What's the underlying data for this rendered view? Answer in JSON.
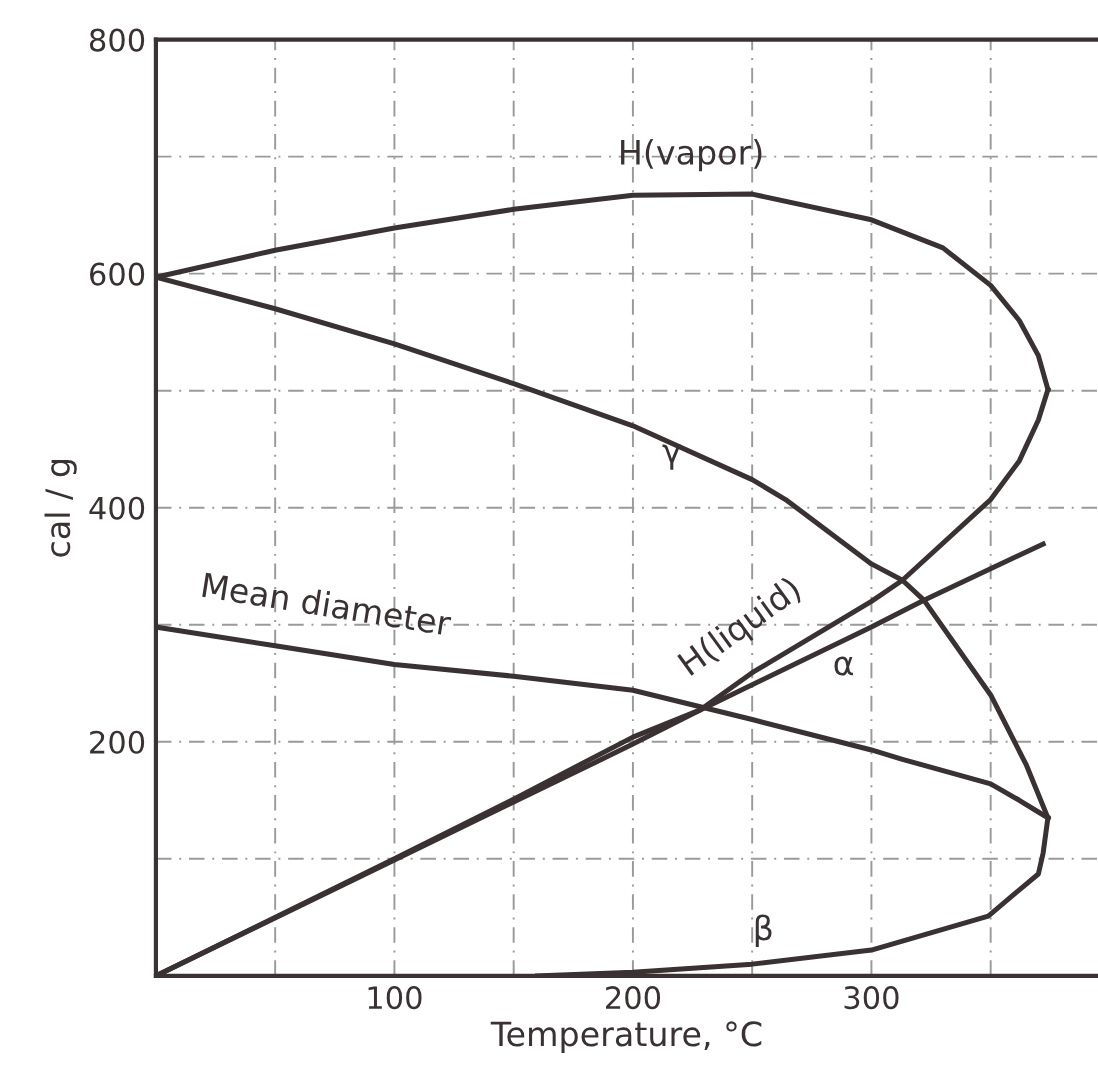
{
  "chart_data": {
    "type": "line",
    "xlabel": "Temperature, °C",
    "ylabel": "cal / g",
    "xlim": [
      0,
      395
    ],
    "ylim": [
      0,
      800
    ],
    "xticks": [
      {
        "value": 0,
        "label": null
      },
      {
        "value": 50,
        "label": null
      },
      100,
      {
        "value": 150,
        "label": null
      },
      200,
      {
        "value": 250,
        "label": null
      },
      300,
      {
        "value": 350,
        "label": null
      }
    ],
    "yticks": [
      {
        "value": 0,
        "label": null
      },
      {
        "value": 100,
        "label": null
      },
      200,
      {
        "value": 300,
        "label": null
      },
      400,
      {
        "value": 500,
        "label": null
      },
      600,
      {
        "value": 700,
        "label": null
      },
      800
    ],
    "grid": true,
    "line_style": "solid",
    "marker": "none",
    "series": [
      {
        "name": "H(vapor)",
        "color": "#3a3232",
        "x": [
          0,
          50,
          100,
          150,
          200,
          250,
          300,
          330,
          350,
          362,
          370,
          374
        ],
        "values": [
          597,
          620,
          639,
          655,
          667,
          668,
          646,
          622,
          590,
          560,
          530,
          501
        ]
      },
      {
        "name": "γ",
        "color": "#3a3232",
        "x": [
          0,
          50,
          100,
          150,
          200,
          250,
          264,
          300,
          313,
          322,
          350,
          365,
          374
        ],
        "values": [
          597,
          570,
          540,
          506,
          470,
          424,
          407,
          352,
          338,
          321,
          240,
          180,
          135
        ]
      },
      {
        "name": "β",
        "color": "#3a3232",
        "x": [
          374,
          372,
          370,
          360,
          349,
          300,
          250,
          200,
          160
        ],
        "values": [
          135,
          105,
          87,
          70,
          51,
          22,
          10,
          3,
          0
        ]
      },
      {
        "name": "Mean diameter",
        "color": "#3a3232",
        "x": [
          0,
          50,
          100,
          150,
          200,
          250,
          300,
          313,
          350,
          362,
          370,
          374
        ],
        "values": [
          298,
          282,
          266,
          256,
          244,
          219,
          193,
          185,
          164,
          150,
          140,
          135
        ]
      },
      {
        "name": "H(liquid)",
        "color": "#3a3232",
        "x": [
          0,
          100,
          150,
          200,
          228,
          250,
          300,
          313,
          350,
          362,
          370,
          374
        ],
        "values": [
          0,
          100,
          151,
          204,
          227,
          259,
          320,
          338,
          407,
          440,
          475,
          501
        ]
      },
      {
        "name": "α",
        "color": "#3a3232",
        "x": [
          0,
          100,
          200,
          228,
          300,
          322,
          372
        ],
        "values": [
          0,
          99,
          198,
          227,
          298,
          321,
          369
        ]
      }
    ]
  }
}
